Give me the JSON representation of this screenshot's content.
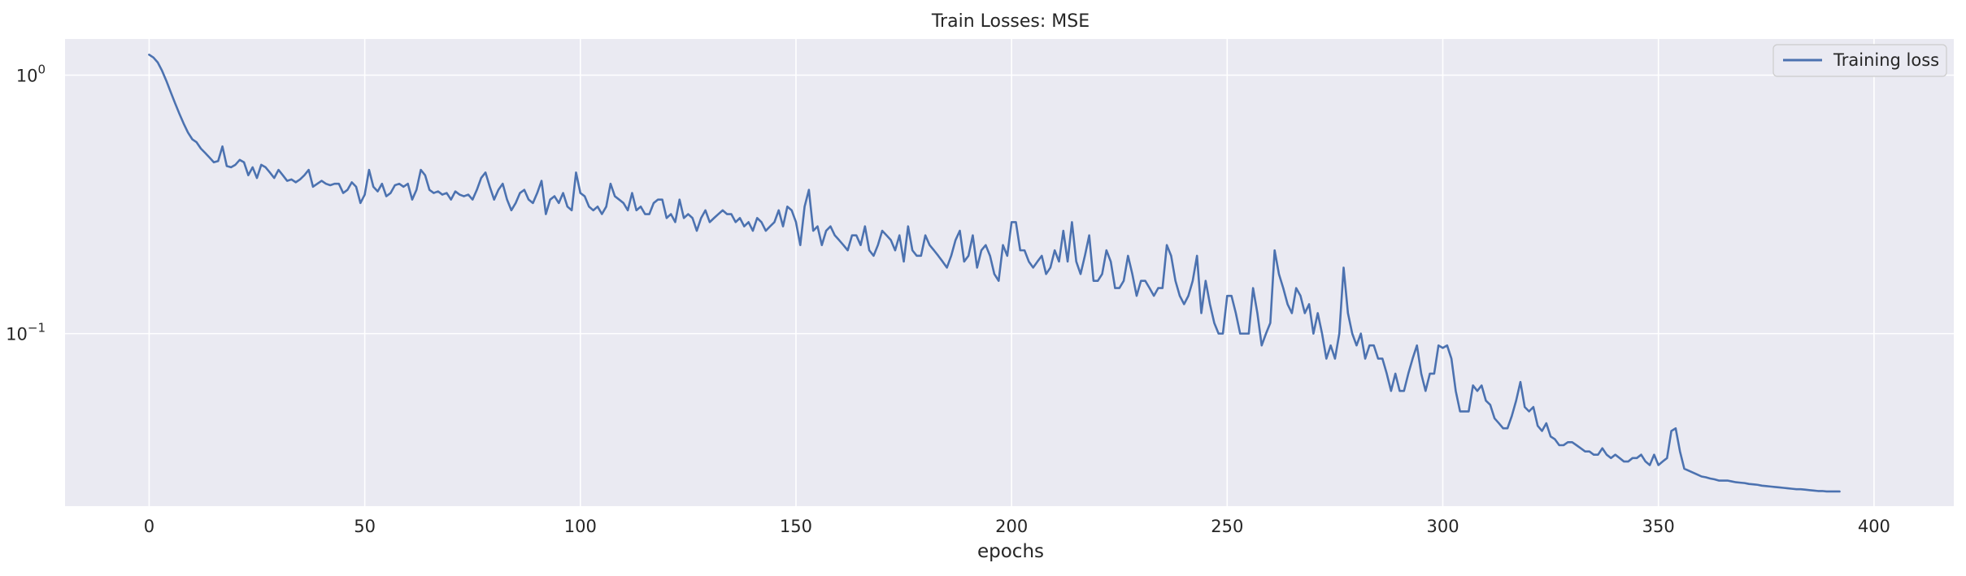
{
  "chart_data": {
    "type": "line",
    "title": "Train Losses:  MSE",
    "xlabel": "epochs",
    "ylabel": "",
    "yscale": "log",
    "xlim": [
      -19.5,
      418.5
    ],
    "ylim": [
      0.0215,
      1.38
    ],
    "xticks": [
      0,
      50,
      100,
      150,
      200,
      250,
      300,
      350,
      400
    ],
    "xtick_labels": [
      "0",
      "50",
      "100",
      "150",
      "200",
      "250",
      "300",
      "350",
      "400"
    ],
    "ytick_labels": [
      {
        "base": "10",
        "exp": "0"
      },
      {
        "base": "10",
        "exp": "−1"
      }
    ],
    "grid": true,
    "legend_position": "top-right",
    "colors": {
      "series": "#4c72b0",
      "background": "#eaeaf2",
      "grid": "#ffffff"
    },
    "series": [
      {
        "name": "Training loss",
        "x_start": 0,
        "x_step": 1,
        "values": [
          1.2,
          1.17,
          1.12,
          1.04,
          0.95,
          0.86,
          0.78,
          0.71,
          0.65,
          0.6,
          0.565,
          0.55,
          0.52,
          0.5,
          0.48,
          0.46,
          0.465,
          0.53,
          0.445,
          0.44,
          0.45,
          0.47,
          0.46,
          0.41,
          0.44,
          0.4,
          0.45,
          0.44,
          0.42,
          0.4,
          0.43,
          0.41,
          0.39,
          0.395,
          0.385,
          0.395,
          0.41,
          0.43,
          0.37,
          0.38,
          0.39,
          0.38,
          0.375,
          0.38,
          0.38,
          0.35,
          0.36,
          0.385,
          0.37,
          0.32,
          0.345,
          0.43,
          0.37,
          0.355,
          0.38,
          0.34,
          0.35,
          0.375,
          0.38,
          0.37,
          0.38,
          0.33,
          0.36,
          0.43,
          0.41,
          0.36,
          0.35,
          0.355,
          0.345,
          0.35,
          0.33,
          0.355,
          0.345,
          0.34,
          0.345,
          0.33,
          0.36,
          0.4,
          0.42,
          0.37,
          0.33,
          0.36,
          0.38,
          0.33,
          0.3,
          0.32,
          0.35,
          0.36,
          0.33,
          0.32,
          0.35,
          0.39,
          0.29,
          0.33,
          0.34,
          0.32,
          0.35,
          0.31,
          0.3,
          0.42,
          0.35,
          0.34,
          0.31,
          0.3,
          0.31,
          0.29,
          0.31,
          0.38,
          0.34,
          0.33,
          0.32,
          0.3,
          0.35,
          0.3,
          0.31,
          0.29,
          0.29,
          0.32,
          0.33,
          0.33,
          0.28,
          0.29,
          0.27,
          0.33,
          0.28,
          0.29,
          0.28,
          0.25,
          0.28,
          0.3,
          0.27,
          0.28,
          0.29,
          0.3,
          0.29,
          0.29,
          0.27,
          0.28,
          0.26,
          0.27,
          0.25,
          0.28,
          0.27,
          0.25,
          0.26,
          0.27,
          0.3,
          0.26,
          0.31,
          0.3,
          0.27,
          0.22,
          0.31,
          0.36,
          0.25,
          0.26,
          0.22,
          0.25,
          0.26,
          0.24,
          0.23,
          0.22,
          0.21,
          0.24,
          0.24,
          0.22,
          0.26,
          0.21,
          0.2,
          0.22,
          0.25,
          0.24,
          0.23,
          0.21,
          0.24,
          0.19,
          0.26,
          0.21,
          0.2,
          0.2,
          0.24,
          0.22,
          0.21,
          0.2,
          0.19,
          0.18,
          0.2,
          0.23,
          0.25,
          0.19,
          0.2,
          0.24,
          0.18,
          0.21,
          0.22,
          0.2,
          0.17,
          0.16,
          0.22,
          0.2,
          0.27,
          0.27,
          0.21,
          0.21,
          0.19,
          0.18,
          0.19,
          0.2,
          0.17,
          0.18,
          0.21,
          0.19,
          0.25,
          0.19,
          0.27,
          0.19,
          0.17,
          0.2,
          0.24,
          0.16,
          0.16,
          0.17,
          0.21,
          0.19,
          0.15,
          0.15,
          0.16,
          0.2,
          0.17,
          0.14,
          0.16,
          0.16,
          0.15,
          0.14,
          0.15,
          0.15,
          0.22,
          0.2,
          0.16,
          0.14,
          0.13,
          0.14,
          0.16,
          0.2,
          0.12,
          0.16,
          0.13,
          0.11,
          0.1,
          0.1,
          0.14,
          0.14,
          0.12,
          0.1,
          0.1,
          0.1,
          0.15,
          0.12,
          0.09,
          0.1,
          0.11,
          0.21,
          0.17,
          0.15,
          0.13,
          0.12,
          0.15,
          0.14,
          0.12,
          0.13,
          0.1,
          0.12,
          0.1,
          0.08,
          0.09,
          0.08,
          0.1,
          0.18,
          0.12,
          0.1,
          0.09,
          0.1,
          0.08,
          0.09,
          0.09,
          0.08,
          0.08,
          0.07,
          0.06,
          0.07,
          0.06,
          0.06,
          0.07,
          0.08,
          0.09,
          0.07,
          0.06,
          0.07,
          0.07,
          0.09,
          0.088,
          0.09,
          0.08,
          0.06,
          0.05,
          0.05,
          0.05,
          0.063,
          0.06,
          0.063,
          0.055,
          0.053,
          0.047,
          0.045,
          0.043,
          0.043,
          0.048,
          0.055,
          0.065,
          0.052,
          0.05,
          0.052,
          0.044,
          0.042,
          0.045,
          0.04,
          0.039,
          0.037,
          0.037,
          0.038,
          0.038,
          0.037,
          0.036,
          0.035,
          0.035,
          0.034,
          0.034,
          0.036,
          0.034,
          0.033,
          0.034,
          0.033,
          0.032,
          0.032,
          0.033,
          0.033,
          0.034,
          0.032,
          0.031,
          0.034,
          0.031,
          0.032,
          0.033,
          0.042,
          0.043,
          0.035,
          0.03,
          0.0295,
          0.029,
          0.0285,
          0.028,
          0.0278,
          0.0275,
          0.0273,
          0.027,
          0.027,
          0.027,
          0.0268,
          0.0266,
          0.0265,
          0.0264,
          0.0262,
          0.0261,
          0.026,
          0.0258,
          0.0257,
          0.0256,
          0.0255,
          0.0254,
          0.0253,
          0.0252,
          0.0251,
          0.025,
          0.025,
          0.0249,
          0.0248,
          0.0247,
          0.0246,
          0.0246,
          0.0245,
          0.0245,
          0.0245,
          0.0245
        ]
      }
    ]
  }
}
